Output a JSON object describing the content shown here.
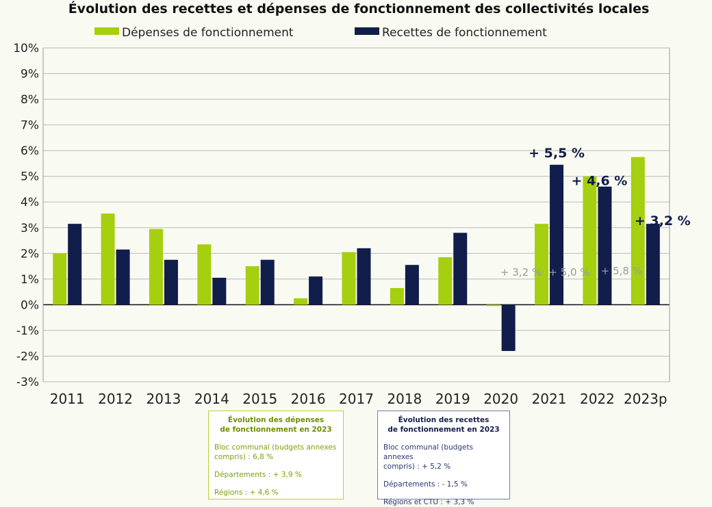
{
  "chart_data": {
    "type": "bar",
    "title": "Évolution des recettes et dépenses de fonctionnement des collectivités locales",
    "categories": [
      "2011",
      "2012",
      "2013",
      "2014",
      "2015",
      "2016",
      "2017",
      "2018",
      "2019",
      "2020",
      "2021",
      "2022",
      "2023p"
    ],
    "series": [
      {
        "name": "Dépenses de fonctionnement",
        "color": "#a6cf0f",
        "values": [
          2.0,
          3.55,
          2.95,
          2.35,
          1.5,
          0.25,
          2.05,
          0.65,
          1.85,
          -0.05,
          3.15,
          5.0,
          5.75
        ]
      },
      {
        "name": "Recettes de fonctionnement",
        "color": "#111d4a",
        "values": [
          3.15,
          2.15,
          1.75,
          1.05,
          1.75,
          1.1,
          2.2,
          1.55,
          2.8,
          -1.8,
          5.45,
          4.6,
          3.15
        ]
      }
    ],
    "ylim": [
      -3,
      10
    ],
    "yticks": [
      10,
      9,
      8,
      7,
      6,
      5,
      4,
      3,
      2,
      1,
      0,
      -1,
      -2,
      -3
    ],
    "ytick_labels": [
      "10%",
      "9%",
      "8%",
      "7%",
      "6%",
      "5%",
      "4%",
      "3%",
      "2%",
      "1%",
      "0%",
      "-1%",
      "-2%",
      "-3%"
    ],
    "legend": [
      "Dépenses de fonctionnement",
      "Recettes de fonctionnement"
    ],
    "annotations_recettes": [
      {
        "category": "2021",
        "label": "+ 5,5 %"
      },
      {
        "category": "2022",
        "label": "+ 4,6 %"
      },
      {
        "category": "2023p",
        "label": "+ 3,2 %"
      }
    ],
    "annotations_depenses": [
      {
        "category": "2021",
        "label": "+ 3,2 %"
      },
      {
        "category": "2022",
        "label": "+ 5,0 %"
      },
      {
        "category": "2023p",
        "label": "+ 5,8 %"
      }
    ]
  },
  "box_depenses": {
    "title": "Évolution des dépenses\nde fonctionnement en 2023",
    "bloc": "Bloc communal (budgets annexes\ncompris) : 6,8 %",
    "departements": "Départements : + 3,9 %",
    "regions": "Régions : + 4,6 %"
  },
  "box_recettes": {
    "title": "Évolution des recettes\nde fonctionnement en 2023",
    "bloc": "Bloc communal (budgets annexes\ncompris) : + 5,2 %",
    "departements": "Départements : - 1,5 %",
    "regions": "Régions et CTU : + 3,3 %"
  }
}
